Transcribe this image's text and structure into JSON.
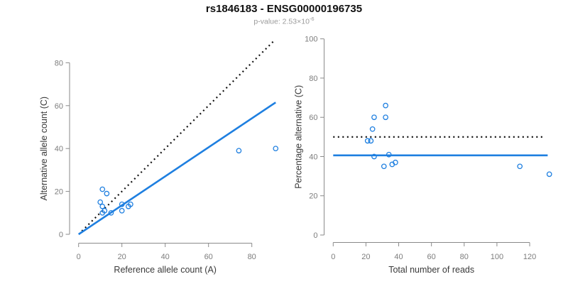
{
  "header": {
    "title": "rs1846183 - ENSG00000196735",
    "p_value_prefix": "p-value: 2.53×10",
    "p_value_exponent": "-6"
  },
  "accent_color": "#1e7fe0",
  "chart_data": [
    {
      "type": "scatter",
      "xlabel": "Reference allele count (A)",
      "ylabel": "Alternative allele count (C)",
      "xlim": [
        0,
        91
      ],
      "ylim": [
        0,
        92
      ],
      "xticks": [
        0,
        20,
        40,
        60,
        80
      ],
      "yticks": [
        0,
        20,
        40,
        60,
        80
      ],
      "grid": false,
      "point_color": "#1e7fe0",
      "points": [
        [
          10,
          15
        ],
        [
          11,
          21
        ],
        [
          11,
          10
        ],
        [
          11,
          13
        ],
        [
          12,
          11
        ],
        [
          13,
          19
        ],
        [
          15,
          10
        ],
        [
          20,
          14
        ],
        [
          20,
          11
        ],
        [
          23,
          13
        ],
        [
          24,
          14
        ],
        [
          74,
          39
        ],
        [
          91,
          40
        ]
      ],
      "lines": [
        {
          "name": "identity-line",
          "style": "dotted",
          "color": "#111111",
          "x1": 1.5,
          "y1": 1.5,
          "x2": 90.5,
          "y2": 90.5
        },
        {
          "name": "regression-line",
          "style": "solid",
          "color": "#1e7fe0",
          "x1": 0,
          "y1": 0,
          "x2": 91,
          "y2": 61.5
        }
      ]
    },
    {
      "type": "scatter",
      "xlabel": "Total number of reads",
      "ylabel": "Percentage alternative (C)",
      "xlim": [
        0,
        132
      ],
      "ylim": [
        0,
        100
      ],
      "xticks": [
        0,
        20,
        40,
        60,
        80,
        100,
        120
      ],
      "yticks": [
        0,
        20,
        40,
        60,
        80,
        100
      ],
      "grid": false,
      "point_color": "#1e7fe0",
      "points": [
        [
          21,
          48
        ],
        [
          23,
          48
        ],
        [
          24,
          54
        ],
        [
          25,
          60
        ],
        [
          25,
          40
        ],
        [
          31,
          35
        ],
        [
          32,
          66
        ],
        [
          32,
          60
        ],
        [
          34,
          41
        ],
        [
          36,
          36
        ],
        [
          38,
          37
        ],
        [
          114,
          35
        ],
        [
          132,
          31
        ]
      ],
      "lines": [
        {
          "name": "expected-percentage-line",
          "style": "dotted",
          "color": "#111111",
          "x1": 0,
          "y1": 50,
          "x2": 129,
          "y2": 50
        },
        {
          "name": "mean-percentage-line",
          "style": "solid",
          "color": "#1e7fe0",
          "x1": 0,
          "y1": 40.6,
          "x2": 131,
          "y2": 40.6
        }
      ]
    }
  ]
}
